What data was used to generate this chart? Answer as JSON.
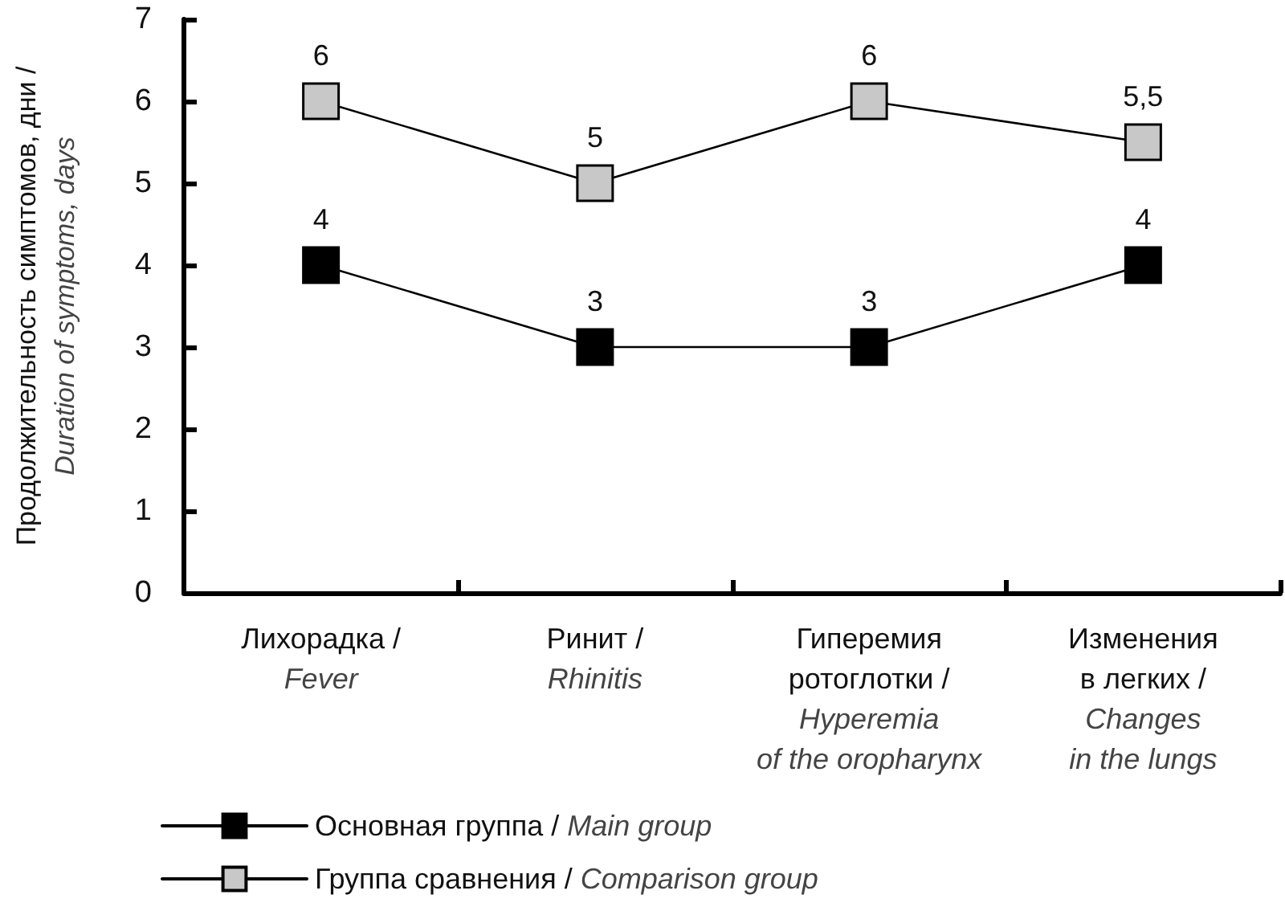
{
  "chart_data": {
    "type": "line",
    "ylabel": "Продолжительность симптомов, дни /\nDuration of symptoms, days",
    "categories": [
      "Лихорадка /\nFever",
      "Ринит /\nRhinitis",
      "Гиперемия\nротоглотки /\nHyperemia\nof the oropharynx",
      "Изменения\nв легких /\nChanges\nin the lungs"
    ],
    "series": [
      {
        "name": "Основная группа / Main group",
        "color": "#000000",
        "values": [
          4,
          3,
          3,
          4
        ],
        "value_labels": [
          "4",
          "3",
          "3",
          "4"
        ]
      },
      {
        "name": "Группа сравнения / Comparison group",
        "color": "#c8c8c8",
        "values": [
          6,
          5,
          6,
          5.5
        ],
        "value_labels": [
          "6",
          "5",
          "6",
          "5,5"
        ]
      }
    ],
    "ylim": [
      0,
      7
    ],
    "yticks": [
      0,
      1,
      2,
      3,
      4,
      5,
      6,
      7
    ],
    "grid": false,
    "legend": "bottom left",
    "marker": "square",
    "line_style": "solid"
  }
}
